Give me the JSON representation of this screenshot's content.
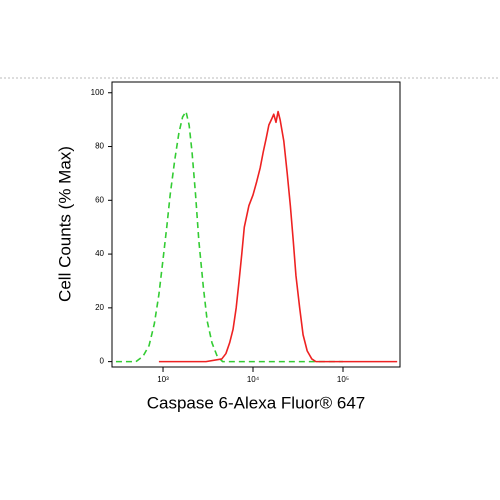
{
  "chart_data": {
    "type": "line",
    "x_label": "Caspase 6-Alexa Fluor® 647",
    "y_label": "Cell Counts (% Max)",
    "xscale": "log",
    "xlim": [
      271,
      430000
    ],
    "ylim": [
      -2,
      104
    ],
    "xticks": [
      {
        "value": 1000,
        "label": "10³"
      },
      {
        "value": 10000,
        "label": "10⁴"
      },
      {
        "value": 100000,
        "label": "10⁵"
      }
    ],
    "yticks": [
      0,
      20,
      40,
      60,
      80,
      100
    ],
    "series": [
      {
        "color": "#33cc33",
        "dash": true,
        "x": [
          300,
          500,
          600,
          700,
          800,
          900,
          1000,
          1100,
          1200,
          1350,
          1500,
          1650,
          1800,
          1950,
          2100,
          2300,
          2500,
          2800,
          3100,
          3500,
          4000,
          4600,
          10000,
          50000,
          100000
        ],
        "values": [
          0,
          0,
          2,
          6,
          14,
          25,
          38,
          50,
          62,
          75,
          85,
          91,
          93,
          88,
          78,
          62,
          45,
          28,
          15,
          7,
          2,
          0,
          0,
          0,
          0
        ]
      },
      {
        "color": "#ee2222",
        "dash": false,
        "x": [
          900,
          3000,
          4500,
          5000,
          5500,
          6000,
          6500,
          7000,
          7500,
          8000,
          9000,
          10000,
          11000,
          12000,
          13000,
          14000,
          15000,
          16000,
          17000,
          18000,
          19000,
          20000,
          22000,
          24000,
          26000,
          28000,
          30000,
          33000,
          36000,
          40000,
          45000,
          50000,
          100000,
          400000
        ],
        "values": [
          0,
          0,
          1,
          3,
          7,
          12,
          20,
          30,
          40,
          50,
          58,
          62,
          67,
          72,
          78,
          83,
          88,
          90,
          92,
          89,
          93,
          90,
          82,
          70,
          58,
          45,
          32,
          20,
          10,
          4,
          1,
          0,
          0,
          0
        ]
      }
    ]
  }
}
